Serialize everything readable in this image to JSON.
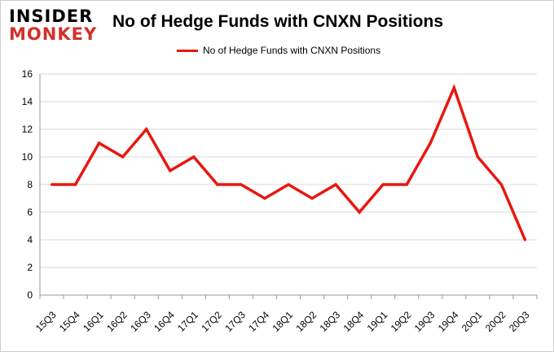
{
  "brand": {
    "line1": "INSIDER",
    "line2": "MONKEY"
  },
  "chart_data": {
    "type": "line",
    "title": "No of Hedge Funds with CNXN Positions",
    "xlabel": "",
    "ylabel": "",
    "categories": [
      "15Q3",
      "15Q4",
      "16Q1",
      "16Q2",
      "16Q3",
      "16Q4",
      "17Q1",
      "17Q2",
      "17Q3",
      "17Q4",
      "18Q1",
      "18Q2",
      "18Q3",
      "18Q4",
      "19Q1",
      "19Q2",
      "19Q3",
      "19Q4",
      "20Q1",
      "20Q2",
      "20Q3"
    ],
    "series": [
      {
        "name": "No of Hedge Funds with CNXN Positions",
        "color": "#e8170e",
        "values": [
          8,
          8,
          11,
          10,
          12,
          9,
          10,
          8,
          8,
          7,
          8,
          7,
          8,
          6,
          8,
          8,
          11,
          15,
          10,
          8,
          4
        ]
      }
    ],
    "ylim": [
      0,
      16
    ],
    "yticks": [
      0,
      2,
      4,
      6,
      8,
      10,
      12,
      14,
      16
    ],
    "grid": true,
    "legend": "top-center"
  }
}
